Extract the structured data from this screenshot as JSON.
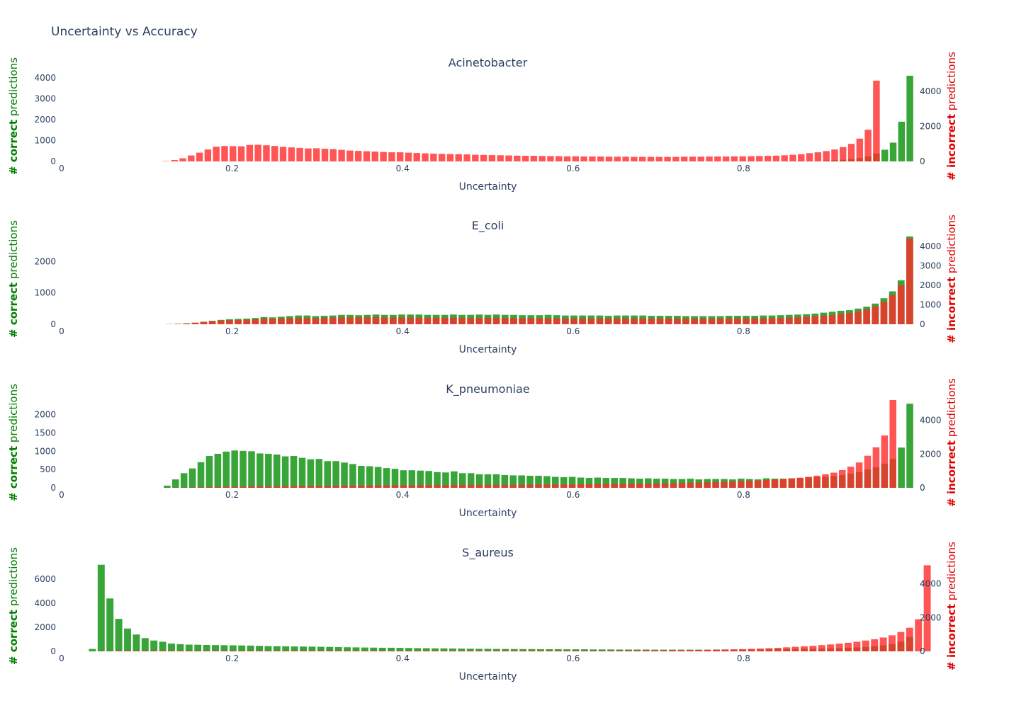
{
  "title": "Uncertainty vs Accuracy",
  "colors": {
    "correct": "#2ca02c",
    "incorrect": "#ff2a2a",
    "text": "#2a3f5f",
    "correct_label": "#008000",
    "incorrect_label": "#e00000"
  },
  "axis_labels": {
    "x": "Uncertainty",
    "y_left_bold": "# correct",
    "y_left_rest": " predictions",
    "y_right_bold": "# incorrect",
    "y_right_rest": " predictions"
  },
  "x_ticks": [
    "0",
    "0.2",
    "0.4",
    "0.6",
    "0.8"
  ],
  "chart_data": [
    {
      "type": "bar",
      "title": "Acinetobacter",
      "xlabel": "Uncertainty",
      "ylabel_left": "# correct predictions",
      "ylabel_right": "# incorrect predictions",
      "xlim": [
        0,
        1
      ],
      "ylim_left": [
        0,
        4200
      ],
      "ylim_right": [
        0,
        5000
      ],
      "yticks_left": [
        0,
        1000,
        2000,
        3000,
        4000
      ],
      "yticks_right": [
        0,
        2000,
        4000
      ],
      "series": [
        {
          "name": "correct",
          "axis": "left",
          "values": [
            0,
            0,
            0,
            0,
            0,
            0,
            0,
            0,
            0,
            0,
            0,
            0,
            0,
            0,
            0,
            0,
            0,
            0,
            0,
            0,
            0,
            0,
            0,
            0,
            0,
            0,
            0,
            0,
            0,
            0,
            0,
            0,
            0,
            0,
            0,
            0,
            0,
            0,
            0,
            0,
            0,
            0,
            0,
            0,
            0,
            0,
            0,
            0,
            0,
            0,
            0,
            0,
            0,
            0,
            0,
            0,
            0,
            0,
            0,
            0,
            0,
            0,
            0,
            0,
            0,
            0,
            0,
            0,
            0,
            0,
            0,
            0,
            0,
            0,
            0,
            0,
            0,
            0,
            0,
            0,
            0,
            0,
            0,
            0,
            0,
            0,
            0,
            5,
            10,
            15,
            20,
            40,
            60,
            80,
            120,
            160,
            240,
            380,
            560,
            900,
            1900,
            4100
          ]
        },
        {
          "name": "incorrect",
          "axis": "right",
          "values": [
            0,
            0,
            0,
            0,
            0,
            0,
            0,
            0,
            0,
            0,
            0,
            0,
            20,
            80,
            180,
            340,
            500,
            680,
            840,
            880,
            870,
            860,
            940,
            950,
            920,
            880,
            830,
            800,
            770,
            740,
            750,
            720,
            700,
            660,
            620,
            600,
            580,
            560,
            540,
            520,
            520,
            500,
            480,
            460,
            440,
            430,
            420,
            410,
            400,
            380,
            370,
            360,
            350,
            340,
            330,
            320,
            320,
            310,
            300,
            300,
            290,
            290,
            280,
            280,
            280,
            270,
            270,
            270,
            260,
            260,
            260,
            260,
            260,
            260,
            270,
            270,
            270,
            280,
            280,
            280,
            290,
            290,
            300,
            310,
            320,
            330,
            350,
            380,
            410,
            470,
            520,
            590,
            680,
            820,
            1000,
            1300,
            1800,
            4600
          ]
        }
      ]
    },
    {
      "type": "bar",
      "title": "E_coli",
      "xlabel": "Uncertainty",
      "ylabel_left": "# correct predictions",
      "ylabel_right": "# incorrect predictions",
      "xlim": [
        0,
        1
      ],
      "ylim_left": [
        0,
        2800
      ],
      "ylim_right": [
        0,
        4500
      ],
      "yticks_left": [
        0,
        1000,
        2000
      ],
      "yticks_right": [
        0,
        1000,
        2000,
        3000,
        4000
      ],
      "series": [
        {
          "name": "correct",
          "axis": "left",
          "values": [
            0,
            0,
            0,
            0,
            0,
            0,
            0,
            0,
            0,
            0,
            0,
            0,
            5,
            15,
            30,
            50,
            80,
            110,
            140,
            160,
            170,
            180,
            200,
            230,
            220,
            240,
            260,
            280,
            280,
            260,
            270,
            280,
            300,
            300,
            290,
            300,
            310,
            300,
            300,
            310,
            310,
            310,
            300,
            300,
            300,
            310,
            300,
            300,
            310,
            300,
            310,
            300,
            300,
            290,
            290,
            290,
            300,
            290,
            280,
            280,
            280,
            280,
            280,
            270,
            280,
            280,
            280,
            280,
            270,
            270,
            270,
            270,
            260,
            260,
            260,
            260,
            260,
            270,
            270,
            270,
            270,
            280,
            280,
            290,
            300,
            310,
            320,
            340,
            370,
            400,
            430,
            450,
            500,
            560,
            660,
            830,
            1050,
            1400,
            2800
          ]
        },
        {
          "name": "incorrect",
          "axis": "right",
          "values": [
            0,
            0,
            0,
            0,
            0,
            0,
            0,
            0,
            0,
            0,
            0,
            0,
            10,
            20,
            40,
            80,
            120,
            160,
            190,
            210,
            220,
            230,
            250,
            290,
            290,
            300,
            310,
            320,
            320,
            310,
            330,
            340,
            350,
            350,
            350,
            350,
            360,
            350,
            340,
            350,
            350,
            340,
            340,
            340,
            330,
            340,
            330,
            330,
            330,
            330,
            330,
            330,
            320,
            320,
            320,
            310,
            310,
            310,
            300,
            300,
            300,
            300,
            300,
            300,
            300,
            300,
            300,
            300,
            300,
            300,
            300,
            290,
            290,
            290,
            290,
            290,
            300,
            300,
            300,
            300,
            300,
            310,
            320,
            330,
            340,
            360,
            380,
            410,
            440,
            480,
            530,
            580,
            660,
            760,
            920,
            1150,
            1500,
            2000,
            4400
          ]
        }
      ]
    },
    {
      "type": "bar",
      "title": "K_pneumoniae",
      "xlabel": "Uncertainty",
      "ylabel_left": "# correct predictions",
      "ylabel_right": "# incorrect predictions",
      "xlim": [
        0,
        1
      ],
      "ylim_left": [
        0,
        2400
      ],
      "ylim_right": [
        0,
        5200
      ],
      "yticks_left": [
        0,
        500,
        1000,
        1500,
        2000
      ],
      "yticks_right": [
        0,
        2000,
        4000
      ],
      "series": [
        {
          "name": "correct",
          "axis": "left",
          "values": [
            0,
            0,
            0,
            0,
            0,
            0,
            0,
            0,
            0,
            0,
            0,
            0,
            60,
            230,
            400,
            530,
            700,
            870,
            930,
            990,
            1020,
            1010,
            1000,
            940,
            930,
            910,
            860,
            870,
            820,
            780,
            790,
            730,
            730,
            690,
            650,
            600,
            590,
            570,
            540,
            520,
            480,
            480,
            470,
            460,
            430,
            420,
            450,
            400,
            400,
            370,
            370,
            370,
            350,
            340,
            340,
            330,
            330,
            320,
            300,
            290,
            300,
            280,
            270,
            280,
            270,
            270,
            270,
            260,
            250,
            260,
            250,
            250,
            240,
            240,
            250,
            230,
            240,
            240,
            240,
            230,
            250,
            240,
            230,
            260,
            250,
            250,
            260,
            270,
            290,
            290,
            300,
            320,
            350,
            390,
            430,
            500,
            560,
            660,
            790,
            1100,
            2300
          ]
        },
        {
          "name": "incorrect",
          "axis": "right",
          "values": [
            0,
            0,
            0,
            0,
            0,
            0,
            0,
            0,
            0,
            0,
            0,
            0,
            5,
            10,
            15,
            25,
            35,
            45,
            55,
            65,
            70,
            75,
            80,
            85,
            90,
            95,
            100,
            105,
            110,
            110,
            115,
            120,
            125,
            130,
            130,
            135,
            140,
            140,
            145,
            150,
            150,
            150,
            155,
            155,
            160,
            160,
            165,
            165,
            170,
            170,
            170,
            175,
            175,
            180,
            180,
            185,
            190,
            190,
            195,
            200,
            200,
            210,
            210,
            220,
            220,
            230,
            230,
            240,
            250,
            250,
            260,
            270,
            280,
            290,
            300,
            310,
            320,
            340,
            350,
            370,
            390,
            410,
            430,
            460,
            490,
            520,
            560,
            600,
            650,
            720,
            800,
            900,
            1050,
            1250,
            1500,
            1900,
            2400,
            3100,
            5200
          ]
        }
      ]
    },
    {
      "type": "bar",
      "title": "S_aureus",
      "xlabel": "Uncertainty",
      "ylabel_left": "# correct predictions",
      "ylabel_right": "# incorrect predictions",
      "xlim": [
        0,
        1
      ],
      "ylim_left": [
        0,
        7300
      ],
      "ylim_right": [
        0,
        5200
      ],
      "yticks_left": [
        0,
        2000,
        4000,
        6000
      ],
      "yticks_right": [
        0,
        2000,
        4000
      ],
      "series": [
        {
          "name": "correct",
          "axis": "left",
          "values": [
            0,
            0,
            0,
            200,
            7200,
            4400,
            2700,
            1900,
            1400,
            1100,
            900,
            800,
            650,
            600,
            560,
            550,
            530,
            520,
            510,
            500,
            490,
            480,
            460,
            440,
            430,
            420,
            410,
            400,
            390,
            380,
            370,
            350,
            340,
            330,
            320,
            310,
            300,
            300,
            290,
            280,
            270,
            260,
            250,
            250,
            240,
            230,
            220,
            210,
            210,
            200,
            200,
            190,
            190,
            190,
            180,
            180,
            180,
            170,
            170,
            170,
            160,
            160,
            160,
            150,
            150,
            150,
            150,
            140,
            140,
            140,
            140,
            140,
            140,
            140,
            150,
            150,
            150,
            150,
            160,
            160,
            170,
            180,
            190,
            200,
            210,
            220,
            230,
            250,
            270,
            300,
            330,
            370,
            420,
            500,
            600,
            800,
            1200
          ]
        },
        {
          "name": "incorrect",
          "axis": "right",
          "values": [
            0,
            0,
            0,
            0,
            20,
            30,
            40,
            40,
            40,
            40,
            40,
            40,
            40,
            40,
            40,
            40,
            40,
            40,
            40,
            40,
            40,
            40,
            40,
            40,
            40,
            40,
            40,
            40,
            40,
            40,
            40,
            40,
            40,
            40,
            40,
            40,
            40,
            40,
            40,
            40,
            40,
            40,
            40,
            40,
            40,
            40,
            40,
            40,
            40,
            40,
            40,
            40,
            40,
            40,
            40,
            40,
            40,
            40,
            40,
            40,
            40,
            40,
            40,
            50,
            50,
            50,
            60,
            60,
            60,
            70,
            70,
            80,
            80,
            90,
            100,
            110,
            120,
            130,
            150,
            170,
            190,
            210,
            240,
            270,
            300,
            330,
            370,
            410,
            460,
            510,
            570,
            640,
            720,
            820,
            950,
            1150,
            1400,
            1900,
            5100
          ]
        }
      ]
    }
  ]
}
